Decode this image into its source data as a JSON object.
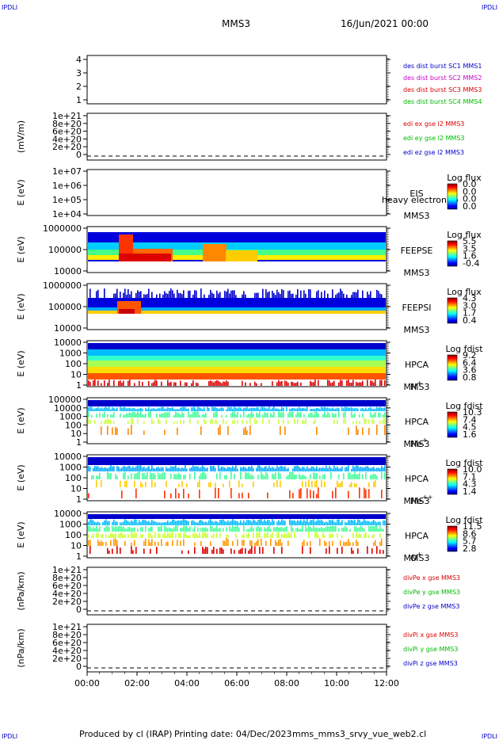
{
  "header": {
    "corner_label": "IPDLI",
    "mission": "MMS3",
    "datetime": "16/Jun/2021 00:00"
  },
  "footer": {
    "produced_by": "Produced by cl (IRAP)",
    "printing_date": "Printing date: 04/Dec/2023",
    "script_name": "mms_mms3_srvy_vue_web2.cl"
  },
  "colors": {
    "blue": "#0000cc",
    "magenta": "#cc00cc",
    "red": "#dd0000",
    "green": "#00bb00"
  },
  "chart_data": {
    "type": "heatmap",
    "x_ticks": [
      "00:00",
      "02:00",
      "04:00",
      "06:00",
      "08:00",
      "10:00",
      "12:00"
    ],
    "panels": [
      {
        "id": "p1",
        "ylabel": "",
        "yticks": [
          "4",
          "3",
          "2",
          "1"
        ],
        "legend": [
          {
            "text": "des dist burst SC1 MMS1",
            "color": "#0000cc"
          },
          {
            "text": "des dist burst SC2 MMS2",
            "color": "#cc00cc"
          },
          {
            "text": "des dist burst SC3 MMS3",
            "color": "#dd0000"
          },
          {
            "text": "des dist burst SC4 MMS4",
            "color": "#00bb00"
          }
        ]
      },
      {
        "id": "p2",
        "ylabel": "(mV/m)",
        "yticks": [
          "1e+21",
          "8e+20",
          "6e+20",
          "4e+20",
          "2e+20",
          "0"
        ],
        "legend": [
          {
            "text": "edi ex gse l2 MMS3",
            "color": "#dd0000"
          },
          {
            "text": "edi ey gse l2 MMS3",
            "color": "#00bb00"
          },
          {
            "text": "edi ez gse l2 MMS3",
            "color": "#0000cc"
          }
        ]
      },
      {
        "id": "p3",
        "ylabel": "E (eV)",
        "yticks": [
          "1e+07",
          "1e+06",
          "1e+05",
          "1e+04"
        ],
        "instrument": [
          "EIS",
          "MMS3"
        ],
        "overlay_text": "heavy electron to",
        "cbar_title": "Log flux",
        "cbar_ticks": [
          "0.0",
          "0.0",
          "0.0",
          "0.0"
        ]
      },
      {
        "id": "p4",
        "ylabel": "E (eV)",
        "yticks": [
          "1000000",
          "100000",
          "10000"
        ],
        "instrument": [
          "FEEPSE",
          "MMS3"
        ],
        "cbar_title": "Log flux",
        "cbar_ticks": [
          "5.5",
          "3.5",
          "1.6",
          "-0.4"
        ]
      },
      {
        "id": "p5",
        "ylabel": "E (eV)",
        "yticks": [
          "1000000",
          "100000",
          "10000"
        ],
        "instrument": [
          "FEEPSI",
          "MMS3"
        ],
        "cbar_title": "Log flux",
        "cbar_ticks": [
          "4.3",
          "3.0",
          "1.7",
          "0.4"
        ]
      },
      {
        "id": "p6",
        "ylabel": "E (eV)",
        "yticks": [
          "10000",
          "1000",
          "100",
          "10",
          "1"
        ],
        "instrument": [
          "HPCA",
          "MMS3"
        ],
        "species": "H",
        "species_sup": "+",
        "cbar_title": "Log fdist",
        "cbar_ticks": [
          "9.2",
          "6.4",
          "3.6",
          "0.8"
        ]
      },
      {
        "id": "p7",
        "ylabel": "E (eV)",
        "yticks": [
          "100000",
          "10000",
          "1000",
          "100",
          "10",
          "1"
        ],
        "instrument": [
          "HPCA",
          "MMS3"
        ],
        "species": "He",
        "species_sup": "+",
        "cbar_title": "Log fdist",
        "cbar_ticks": [
          "10.3",
          "7.4",
          "4.5",
          "1.6"
        ]
      },
      {
        "id": "p8",
        "ylabel": "E (eV)",
        "yticks": [
          "10000",
          "1000",
          "100",
          "10",
          "1"
        ],
        "instrument": [
          "HPCA",
          "MMS3"
        ],
        "species": "He",
        "species_sup": "++",
        "cbar_title": "Log fdist",
        "cbar_ticks": [
          "10.0",
          "7.1",
          "4.3",
          "1.4"
        ]
      },
      {
        "id": "p9",
        "ylabel": "E (eV)",
        "yticks": [
          "10000",
          "1000",
          "100",
          "10",
          "1"
        ],
        "instrument": [
          "HPCA",
          "MMS3"
        ],
        "species": "O",
        "species_sup": "+",
        "cbar_title": "Log fdist",
        "cbar_ticks": [
          "11.5",
          "8.6",
          "5.7",
          "2.8"
        ]
      },
      {
        "id": "p10",
        "ylabel": "(nPa/km)",
        "yticks": [
          "1e+21",
          "8e+20",
          "6e+20",
          "4e+20",
          "2e+20",
          "0"
        ],
        "legend": [
          {
            "text": "divPe x gse MMS3",
            "color": "#dd0000"
          },
          {
            "text": "divPe y gse MMS3",
            "color": "#00bb00"
          },
          {
            "text": "divPe z gse MMS3",
            "color": "#0000cc"
          }
        ]
      },
      {
        "id": "p11",
        "ylabel": "(nPa/km)",
        "yticks": [
          "1e+21",
          "8e+20",
          "6e+20",
          "4e+20",
          "2e+20",
          "0"
        ],
        "legend": [
          {
            "text": "divPi x gse MMS3",
            "color": "#dd0000"
          },
          {
            "text": "divPi y gse MMS3",
            "color": "#00bb00"
          },
          {
            "text": "divPi z gse MMS3",
            "color": "#0000cc"
          }
        ]
      }
    ]
  }
}
